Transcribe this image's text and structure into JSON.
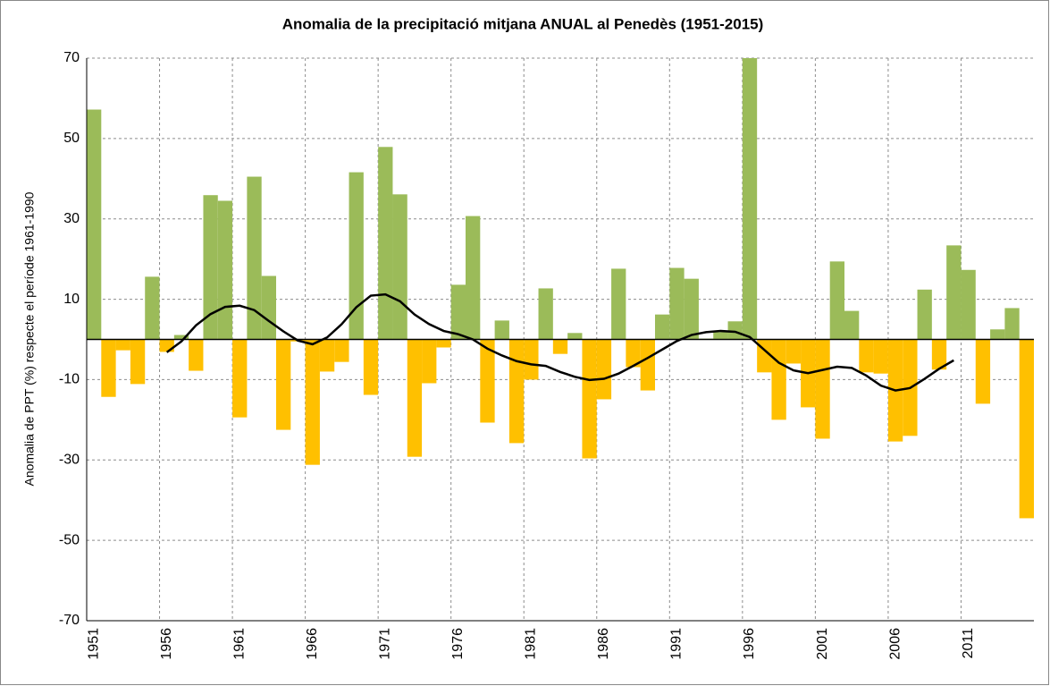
{
  "chart_data": {
    "type": "bar",
    "title": "Anomalia de la precipitació mitjana ANUAL al Penedès (1951-2015)",
    "y_label": "Anomalia de PPT (%) respecte el període 1961-1990",
    "categories": [
      "1951",
      null,
      null,
      null,
      null,
      "1956",
      null,
      null,
      null,
      null,
      "1961",
      null,
      null,
      null,
      null,
      "1966",
      null,
      null,
      null,
      null,
      "1971",
      null,
      null,
      null,
      null,
      "1976",
      null,
      null,
      null,
      null,
      "1981",
      null,
      null,
      null,
      null,
      "1986",
      null,
      null,
      null,
      null,
      "1991",
      null,
      null,
      null,
      null,
      "1996",
      null,
      null,
      null,
      null,
      "2001",
      null,
      null,
      null,
      null,
      "2006",
      null,
      null,
      null,
      null,
      "2011",
      null,
      null,
      null,
      null
    ],
    "values": [
      57.2,
      -14.3,
      -2.7,
      -11.1,
      15.6,
      -3.1,
      1.1,
      -7.8,
      35.9,
      34.5,
      -19.4,
      40.5,
      15.8,
      -22.5,
      -0.5,
      -31.2,
      -8.0,
      -5.6,
      41.6,
      -13.8,
      47.9,
      36.1,
      -29.2,
      -10.9,
      -2.0,
      13.6,
      30.7,
      -20.7,
      4.7,
      -25.8,
      -10.0,
      12.7,
      -3.6,
      1.6,
      -29.6,
      -14.9,
      17.6,
      -6.9,
      -12.7,
      6.2,
      17.8,
      15.1,
      0.2,
      1.8,
      4.5,
      70,
      -8.2,
      -20.0,
      -6.0,
      -16.9,
      -24.7,
      19.4,
      7.1,
      -8.2,
      -8.5,
      -25.4,
      -24.0,
      12.4,
      -7.5,
      23.4,
      17.3,
      -16.0,
      2.5,
      7.8,
      -44.5
    ],
    "positive_color": "#9bbb59",
    "negative_color": "#ffc000",
    "moving_average": {
      "color": "#000000",
      "values": [
        null,
        null,
        null,
        null,
        null,
        -3.2,
        -0.5,
        3.5,
        6.3,
        8.1,
        8.4,
        7.3,
        4.6,
        2.0,
        -0.3,
        -1.2,
        0.5,
        3.8,
        8.0,
        10.9,
        11.2,
        9.5,
        6.2,
        3.8,
        2.1,
        1.3,
        0.0,
        -2.3,
        -4.0,
        -5.4,
        -6.2,
        -6.6,
        -8.1,
        -9.3,
        -10.1,
        -9.8,
        -8.5,
        -6.6,
        -4.6,
        -2.5,
        -0.4,
        1.1,
        1.8,
        2.1,
        1.9,
        0.6,
        -2.6,
        -5.8,
        -7.7,
        -8.4,
        -7.6,
        -6.8,
        -7.1,
        -9.0,
        -11.5,
        -12.7,
        -12.1,
        -9.8,
        -7.3,
        -5.2,
        null,
        null,
        null,
        null,
        null
      ]
    },
    "ylim": [
      -70,
      70
    ],
    "yticks": [
      70,
      50,
      30,
      10,
      -10,
      -30,
      -50,
      -70
    ],
    "grid": true
  }
}
